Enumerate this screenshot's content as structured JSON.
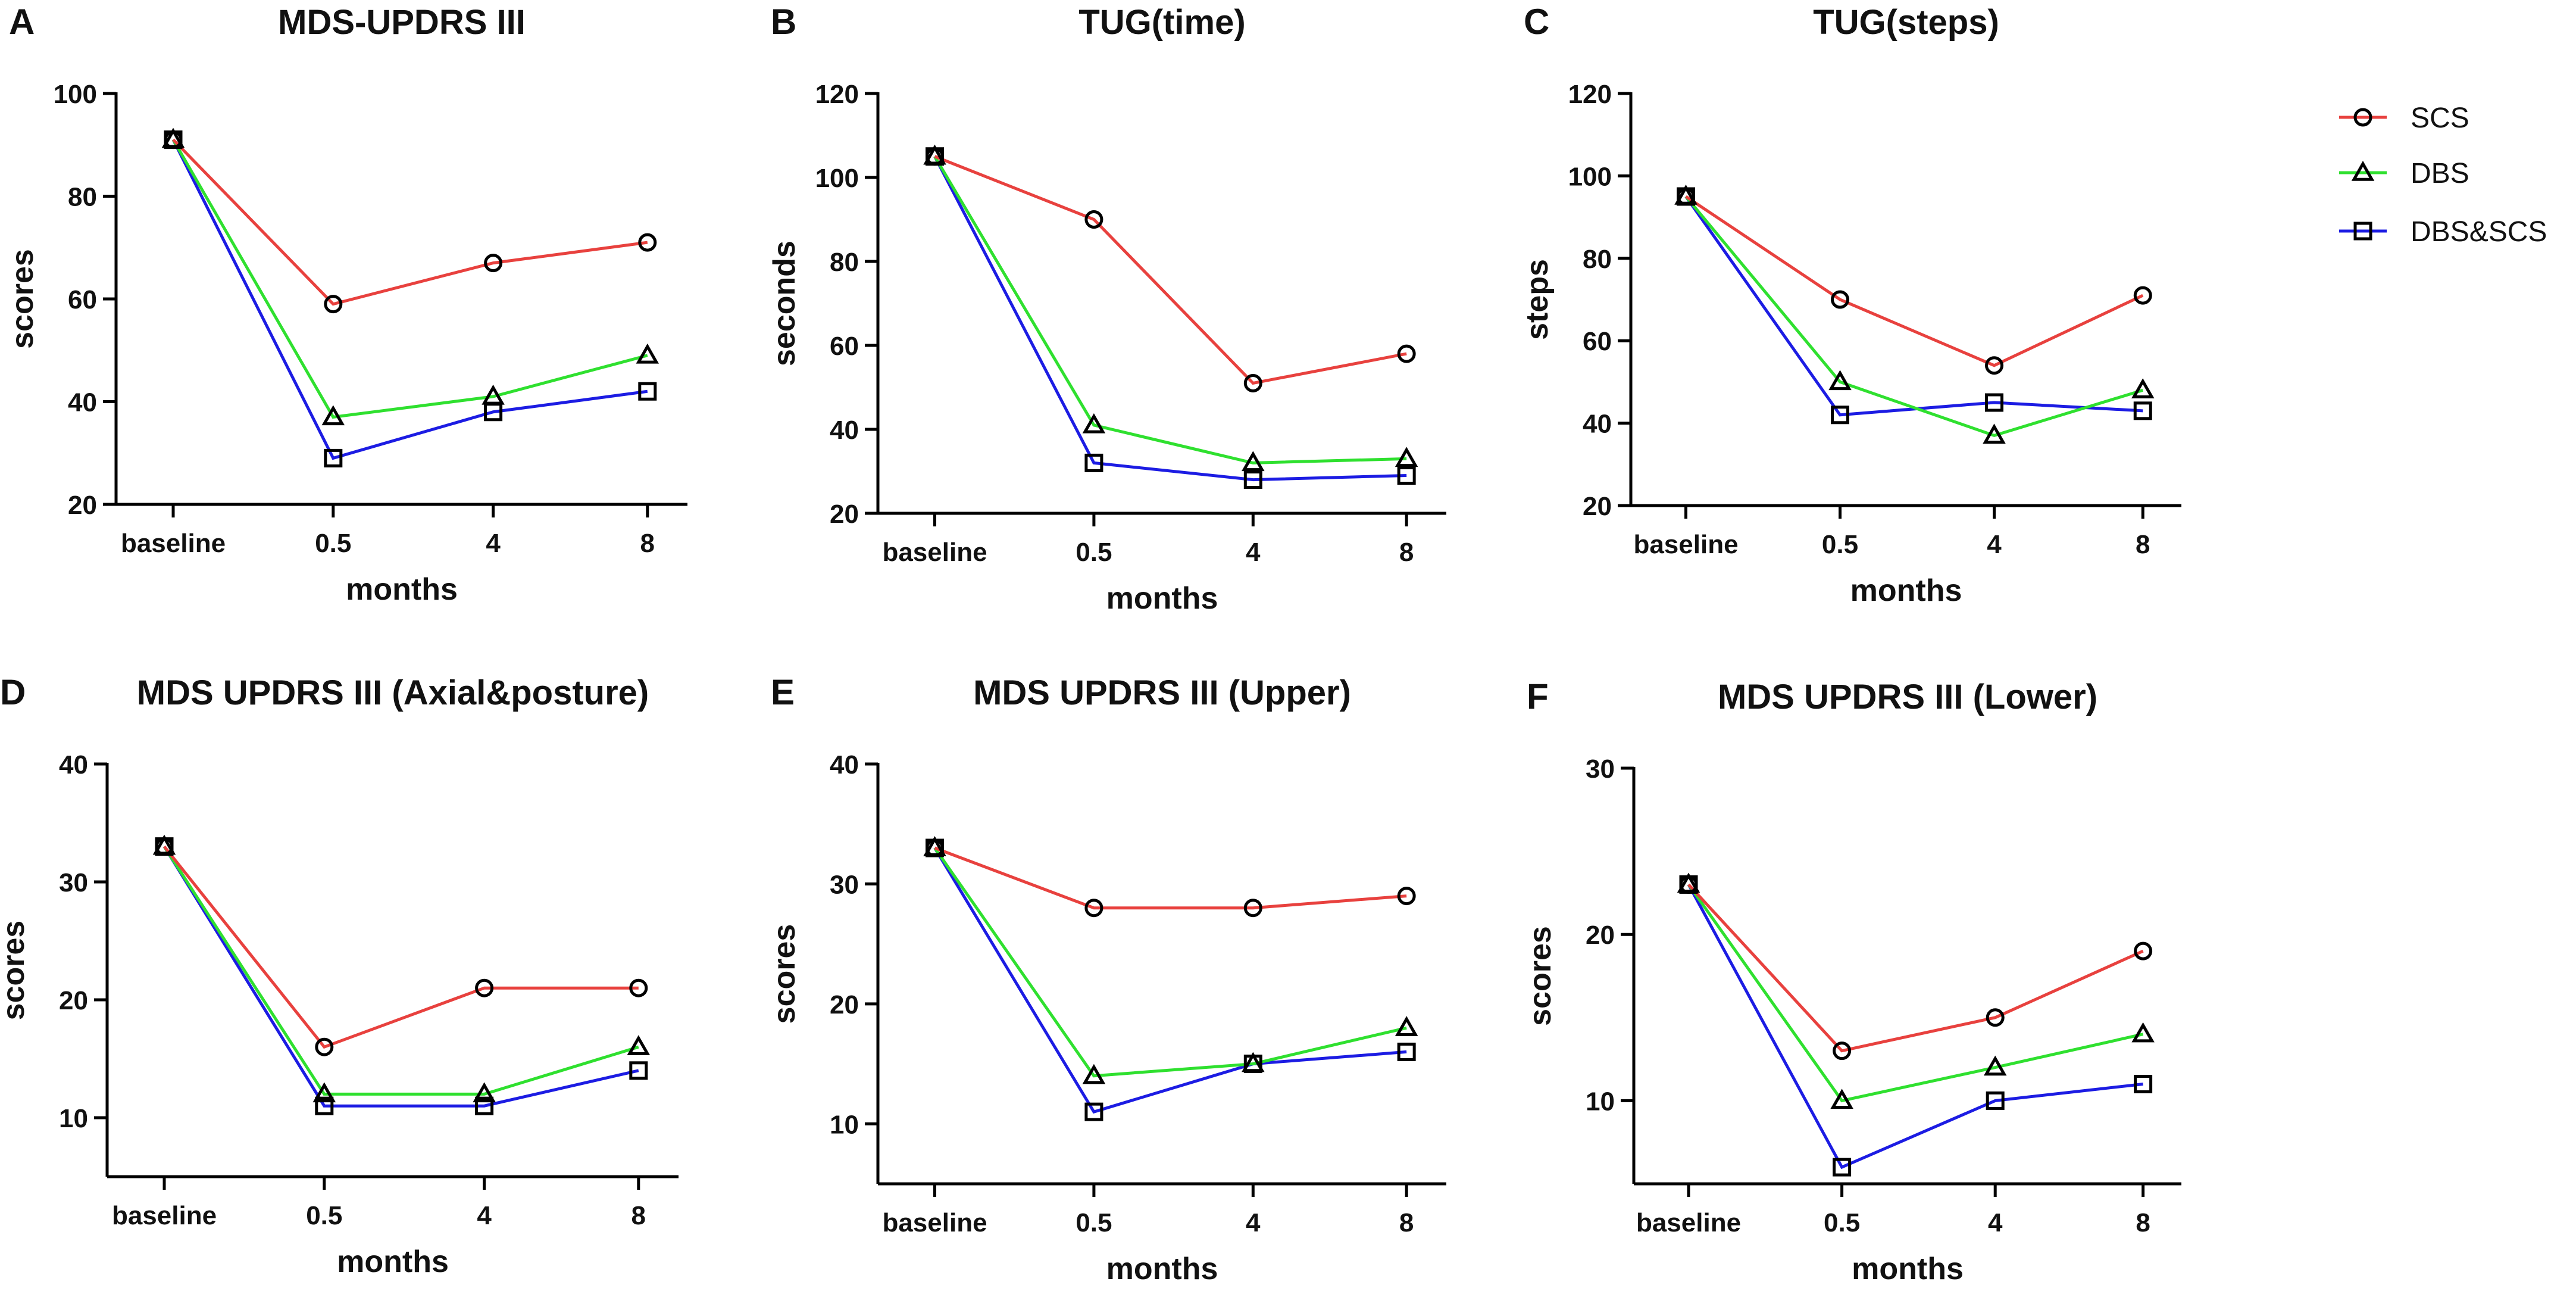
{
  "colors": {
    "SCS": "#e8413e",
    "DBS": "#2fe02f",
    "DBS&SCS": "#1c1ce3"
  },
  "legend": [
    {
      "name": "SCS",
      "marker": "circle"
    },
    {
      "name": "DBS",
      "marker": "triangle"
    },
    {
      "name": "DBS&SCS",
      "marker": "square"
    }
  ],
  "chart_data": [
    {
      "letter": "A",
      "type": "line",
      "title": "MDS-UPDRS III",
      "xlabel": "months",
      "ylabel": "scores",
      "categories": [
        "baseline",
        "0.5",
        "4",
        "8"
      ],
      "ylim": [
        20,
        100
      ],
      "yticks": [
        20,
        40,
        60,
        80,
        100
      ],
      "series": [
        {
          "name": "SCS",
          "values": [
            91,
            59,
            67,
            71
          ]
        },
        {
          "name": "DBS",
          "values": [
            91,
            37,
            41,
            49
          ]
        },
        {
          "name": "DBS&SCS",
          "values": [
            91,
            29,
            38,
            42
          ]
        }
      ]
    },
    {
      "letter": "B",
      "type": "line",
      "title": "TUG(time)",
      "xlabel": "months",
      "ylabel": "seconds",
      "categories": [
        "baseline",
        "0.5",
        "4",
        "8"
      ],
      "ylim": [
        20,
        120
      ],
      "yticks": [
        20,
        40,
        60,
        80,
        100,
        120
      ],
      "series": [
        {
          "name": "SCS",
          "values": [
            105,
            90,
            51,
            58
          ]
        },
        {
          "name": "DBS",
          "values": [
            105,
            41,
            32,
            33
          ]
        },
        {
          "name": "DBS&SCS",
          "values": [
            105,
            32,
            28,
            29
          ]
        }
      ]
    },
    {
      "letter": "C",
      "type": "line",
      "title": "TUG(steps)",
      "xlabel": "months",
      "ylabel": "steps",
      "categories": [
        "baseline",
        "0.5",
        "4",
        "8"
      ],
      "ylim": [
        20,
        120
      ],
      "yticks": [
        20,
        40,
        60,
        80,
        100,
        120
      ],
      "series": [
        {
          "name": "SCS",
          "values": [
            95,
            70,
            54,
            71
          ]
        },
        {
          "name": "DBS",
          "values": [
            95,
            50,
            37,
            48
          ]
        },
        {
          "name": "DBS&SCS",
          "values": [
            95,
            42,
            45,
            43
          ]
        }
      ]
    },
    {
      "letter": "D",
      "type": "line",
      "title": "MDS UPDRS III (Axial&posture)",
      "xlabel": "months",
      "ylabel": "scores",
      "categories": [
        "baseline",
        "0.5",
        "4",
        "8"
      ],
      "ylim": [
        5,
        40
      ],
      "yticks": [
        10,
        20,
        30,
        40
      ],
      "series": [
        {
          "name": "SCS",
          "values": [
            33,
            16,
            21,
            21
          ]
        },
        {
          "name": "DBS",
          "values": [
            33,
            12,
            12,
            16
          ]
        },
        {
          "name": "DBS&SCS",
          "values": [
            33,
            11,
            11,
            14
          ]
        }
      ]
    },
    {
      "letter": "E",
      "type": "line",
      "title": "MDS UPDRS III (Upper)",
      "xlabel": "months",
      "ylabel": "scores",
      "categories": [
        "baseline",
        "0.5",
        "4",
        "8"
      ],
      "ylim": [
        5,
        40
      ],
      "yticks": [
        10,
        20,
        30,
        40
      ],
      "series": [
        {
          "name": "SCS",
          "values": [
            33,
            28,
            28,
            29
          ]
        },
        {
          "name": "DBS",
          "values": [
            33,
            14,
            15,
            18
          ]
        },
        {
          "name": "DBS&SCS",
          "values": [
            33,
            11,
            15,
            16
          ]
        }
      ]
    },
    {
      "letter": "F",
      "type": "line",
      "title": "MDS UPDRS III (Lower)",
      "xlabel": "months",
      "ylabel": "scores",
      "categories": [
        "baseline",
        "0.5",
        "4",
        "8"
      ],
      "ylim": [
        5,
        30
      ],
      "yticks": [
        10,
        20,
        30
      ],
      "series": [
        {
          "name": "SCS",
          "values": [
            23,
            13,
            15,
            19
          ]
        },
        {
          "name": "DBS",
          "values": [
            23,
            10,
            12,
            14
          ]
        },
        {
          "name": "DBS&SCS",
          "values": [
            23,
            6,
            10,
            11
          ]
        }
      ]
    }
  ]
}
